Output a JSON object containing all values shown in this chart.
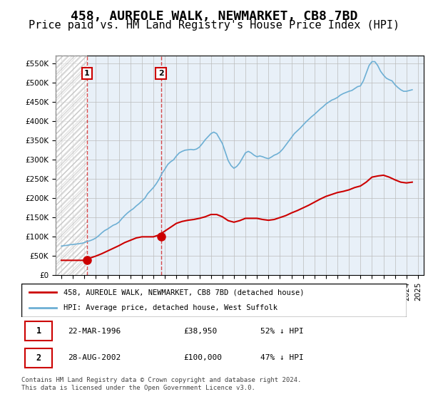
{
  "title": "458, AUREOLE WALK, NEWMARKET, CB8 7BD",
  "subtitle": "Price paid vs. HM Land Registry's House Price Index (HPI)",
  "title_fontsize": 13,
  "subtitle_fontsize": 11,
  "ylabel_values": [
    "£0",
    "£50K",
    "£100K",
    "£150K",
    "£200K",
    "£250K",
    "£300K",
    "£350K",
    "£400K",
    "£450K",
    "£500K",
    "£550K"
  ],
  "ylim": [
    0,
    570000
  ],
  "yticks": [
    0,
    50000,
    100000,
    150000,
    200000,
    250000,
    300000,
    350000,
    400000,
    450000,
    500000,
    550000
  ],
  "xlim_start": 1993.5,
  "xlim_end": 2025.5,
  "xtick_years": [
    1994,
    1995,
    1996,
    1997,
    1998,
    1999,
    2000,
    2001,
    2002,
    2003,
    2004,
    2005,
    2006,
    2007,
    2008,
    2009,
    2010,
    2011,
    2012,
    2013,
    2014,
    2015,
    2016,
    2017,
    2018,
    2019,
    2020,
    2021,
    2022,
    2023,
    2024,
    2025
  ],
  "hpi_color": "#6dafd4",
  "price_color": "#cc0000",
  "hatch_color": "#cccccc",
  "grid_color": "#cccccc",
  "bg_color": "#f0f4f8",
  "transaction1_x": 1996.22,
  "transaction1_y": 38950,
  "transaction2_x": 2002.65,
  "transaction2_y": 100000,
  "legend_label_price": "458, AUREOLE WALK, NEWMARKET, CB8 7BD (detached house)",
  "legend_label_hpi": "HPI: Average price, detached house, West Suffolk",
  "table_row1": [
    "1",
    "22-MAR-1996",
    "£38,950",
    "52% ↓ HPI"
  ],
  "table_row2": [
    "2",
    "28-AUG-2002",
    "£100,000",
    "47% ↓ HPI"
  ],
  "footer": "Contains HM Land Registry data © Crown copyright and database right 2024.\nThis data is licensed under the Open Government Licence v3.0.",
  "hpi_data_x": [
    1994.0,
    1994.25,
    1994.5,
    1994.75,
    1995.0,
    1995.25,
    1995.5,
    1995.75,
    1996.0,
    1996.25,
    1996.5,
    1996.75,
    1997.0,
    1997.25,
    1997.5,
    1997.75,
    1998.0,
    1998.25,
    1998.5,
    1998.75,
    1999.0,
    1999.25,
    1999.5,
    1999.75,
    2000.0,
    2000.25,
    2000.5,
    2000.75,
    2001.0,
    2001.25,
    2001.5,
    2001.75,
    2002.0,
    2002.25,
    2002.5,
    2002.75,
    2003.0,
    2003.25,
    2003.5,
    2003.75,
    2004.0,
    2004.25,
    2004.5,
    2004.75,
    2005.0,
    2005.25,
    2005.5,
    2005.75,
    2006.0,
    2006.25,
    2006.5,
    2006.75,
    2007.0,
    2007.25,
    2007.5,
    2007.75,
    2008.0,
    2008.25,
    2008.5,
    2008.75,
    2009.0,
    2009.25,
    2009.5,
    2009.75,
    2010.0,
    2010.25,
    2010.5,
    2010.75,
    2011.0,
    2011.25,
    2011.5,
    2011.75,
    2012.0,
    2012.25,
    2012.5,
    2012.75,
    2013.0,
    2013.25,
    2013.5,
    2013.75,
    2014.0,
    2014.25,
    2014.5,
    2014.75,
    2015.0,
    2015.25,
    2015.5,
    2015.75,
    2016.0,
    2016.25,
    2016.5,
    2016.75,
    2017.0,
    2017.25,
    2017.5,
    2017.75,
    2018.0,
    2018.25,
    2018.5,
    2018.75,
    2019.0,
    2019.25,
    2019.5,
    2019.75,
    2020.0,
    2020.25,
    2020.5,
    2020.75,
    2021.0,
    2021.25,
    2021.5,
    2021.75,
    2022.0,
    2022.25,
    2022.5,
    2022.75,
    2023.0,
    2023.25,
    2023.5,
    2023.75,
    2024.0,
    2024.25,
    2024.5
  ],
  "hpi_data_y": [
    76000,
    77000,
    78000,
    79500,
    80000,
    81000,
    82000,
    83000,
    85000,
    88000,
    90000,
    93000,
    97000,
    103000,
    110000,
    116000,
    120000,
    125000,
    130000,
    133000,
    138000,
    147000,
    155000,
    162000,
    168000,
    173000,
    180000,
    186000,
    193000,
    200000,
    212000,
    220000,
    228000,
    238000,
    250000,
    265000,
    276000,
    288000,
    295000,
    300000,
    310000,
    318000,
    322000,
    325000,
    326000,
    327000,
    326000,
    328000,
    333000,
    342000,
    352000,
    360000,
    368000,
    372000,
    368000,
    355000,
    342000,
    320000,
    298000,
    285000,
    278000,
    283000,
    292000,
    305000,
    318000,
    322000,
    318000,
    312000,
    308000,
    310000,
    308000,
    305000,
    303000,
    307000,
    312000,
    315000,
    320000,
    328000,
    338000,
    348000,
    358000,
    368000,
    375000,
    382000,
    390000,
    398000,
    405000,
    412000,
    418000,
    425000,
    432000,
    438000,
    445000,
    450000,
    455000,
    458000,
    462000,
    468000,
    472000,
    475000,
    478000,
    480000,
    485000,
    490000,
    492000,
    505000,
    525000,
    545000,
    555000,
    555000,
    545000,
    530000,
    520000,
    512000,
    508000,
    505000,
    495000,
    488000,
    482000,
    478000,
    478000,
    480000,
    482000
  ],
  "price_data_x": [
    1994.0,
    1994.5,
    1995.0,
    1995.5,
    1996.0,
    1996.5,
    1997.0,
    1997.5,
    1998.0,
    1998.5,
    1999.0,
    1999.5,
    2000.0,
    2000.5,
    2001.0,
    2001.5,
    2002.0,
    2002.5,
    2003.0,
    2003.5,
    2004.0,
    2004.5,
    2005.0,
    2005.5,
    2006.0,
    2006.5,
    2007.0,
    2007.5,
    2008.0,
    2008.5,
    2009.0,
    2009.5,
    2010.0,
    2010.5,
    2011.0,
    2011.5,
    2012.0,
    2012.5,
    2013.0,
    2013.5,
    2014.0,
    2014.5,
    2015.0,
    2015.5,
    2016.0,
    2016.5,
    2017.0,
    2017.5,
    2018.0,
    2018.5,
    2019.0,
    2019.5,
    2020.0,
    2020.5,
    2021.0,
    2021.5,
    2022.0,
    2022.5,
    2023.0,
    2023.5,
    2024.0,
    2024.5
  ],
  "price_data_y": [
    38950,
    38950,
    38950,
    38950,
    38950,
    45000,
    50000,
    56000,
    63000,
    70000,
    77000,
    85000,
    91000,
    97000,
    100000,
    100000,
    100000,
    105000,
    115000,
    125000,
    135000,
    140000,
    143000,
    145000,
    148000,
    152000,
    158000,
    158000,
    152000,
    142000,
    138000,
    142000,
    148000,
    148000,
    148000,
    145000,
    143000,
    145000,
    150000,
    155000,
    162000,
    168000,
    175000,
    182000,
    190000,
    198000,
    205000,
    210000,
    215000,
    218000,
    222000,
    228000,
    232000,
    242000,
    255000,
    258000,
    260000,
    255000,
    248000,
    242000,
    240000,
    242000
  ]
}
